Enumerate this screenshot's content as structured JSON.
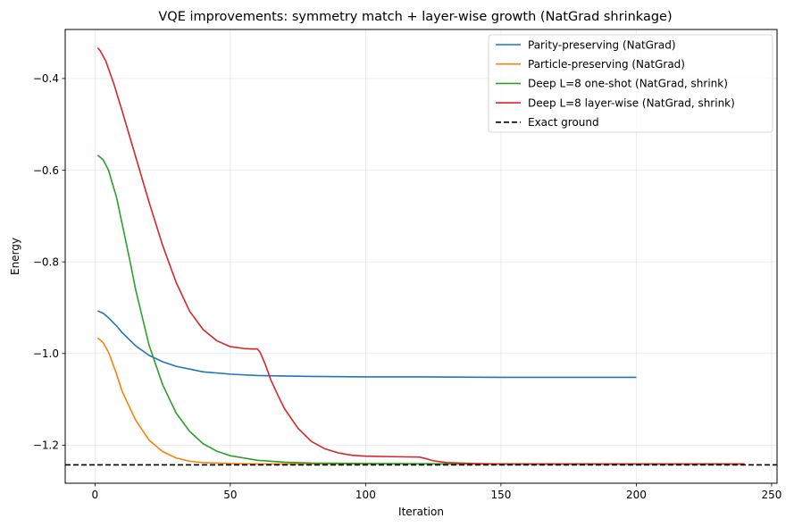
{
  "chart_data": {
    "type": "line",
    "title": "VQE improvements: symmetry match + layer-wise growth (NatGrad shrinkage)",
    "xlabel": "Iteration",
    "ylabel": "Energy",
    "xlim": [
      -11,
      252
    ],
    "ylim": [
      -1.283,
      -0.293
    ],
    "xticks": [
      0,
      50,
      100,
      150,
      200,
      250
    ],
    "yticks": [
      -1.2,
      -1.0,
      -0.8,
      -0.6,
      -0.4
    ],
    "xtick_labels": [
      "0",
      "50",
      "100",
      "150",
      "200",
      "250"
    ],
    "ytick_labels": [
      "−1.2",
      "−1.0",
      "−0.8",
      "−0.6",
      "−0.4"
    ],
    "grid": true,
    "legend_position": "top-right",
    "series": [
      {
        "name": "Parity-preserving (NatGrad)",
        "color": "#1f77b4",
        "x": [
          1,
          3,
          5,
          8,
          10,
          15,
          20,
          25,
          30,
          40,
          50,
          60,
          70,
          80,
          100,
          120,
          150,
          200
        ],
        "y": [
          -0.907,
          -0.912,
          -0.922,
          -0.94,
          -0.954,
          -0.983,
          -1.004,
          -1.018,
          -1.028,
          -1.04,
          -1.045,
          -1.048,
          -1.049,
          -1.05,
          -1.051,
          -1.051,
          -1.052,
          -1.052
        ]
      },
      {
        "name": "Particle-preserving (NatGrad)",
        "color": "#ff7f0e",
        "x": [
          1,
          3,
          5,
          8,
          10,
          15,
          20,
          25,
          30,
          35,
          40,
          50,
          60,
          80,
          100,
          150,
          200,
          240
        ],
        "y": [
          -0.966,
          -0.976,
          -0.997,
          -1.045,
          -1.082,
          -1.145,
          -1.189,
          -1.214,
          -1.228,
          -1.235,
          -1.238,
          -1.24,
          -1.241,
          -1.241,
          -1.241,
          -1.241,
          -1.241,
          -1.241
        ]
      },
      {
        "name": "Deep L=8 one-shot (NatGrad, shrink)",
        "color": "#2ca02c",
        "x": [
          1,
          3,
          5,
          8,
          10,
          13,
          15,
          20,
          25,
          30,
          35,
          40,
          45,
          50,
          60,
          70,
          80,
          100,
          150,
          200,
          240
        ],
        "y": [
          -0.567,
          -0.577,
          -0.6,
          -0.66,
          -0.716,
          -0.8,
          -0.86,
          -0.982,
          -1.068,
          -1.13,
          -1.17,
          -1.197,
          -1.213,
          -1.223,
          -1.233,
          -1.237,
          -1.239,
          -1.24,
          -1.241,
          -1.241,
          -1.241
        ]
      },
      {
        "name": "Deep L=8 layer-wise (NatGrad, shrink)",
        "color": "#d62728",
        "x": [
          1,
          2,
          4,
          7,
          10,
          15,
          20,
          25,
          30,
          35,
          40,
          45,
          50,
          55,
          58,
          60,
          61,
          63,
          65,
          68,
          70,
          75,
          80,
          85,
          90,
          95,
          100,
          110,
          120,
          122,
          125,
          130,
          140,
          150,
          200,
          240
        ],
        "y": [
          -0.333,
          -0.34,
          -0.362,
          -0.412,
          -0.47,
          -0.57,
          -0.67,
          -0.764,
          -0.845,
          -0.908,
          -0.948,
          -0.972,
          -0.985,
          -0.989,
          -0.99,
          -0.99,
          -0.997,
          -1.025,
          -1.058,
          -1.096,
          -1.12,
          -1.163,
          -1.192,
          -1.208,
          -1.217,
          -1.222,
          -1.224,
          -1.225,
          -1.226,
          -1.229,
          -1.234,
          -1.238,
          -1.24,
          -1.241,
          -1.241,
          -1.241
        ]
      },
      {
        "name": "Exact ground",
        "color": "#000000",
        "dashed": true,
        "x": [
          -11,
          252
        ],
        "y": [
          -1.243,
          -1.243
        ]
      }
    ]
  }
}
